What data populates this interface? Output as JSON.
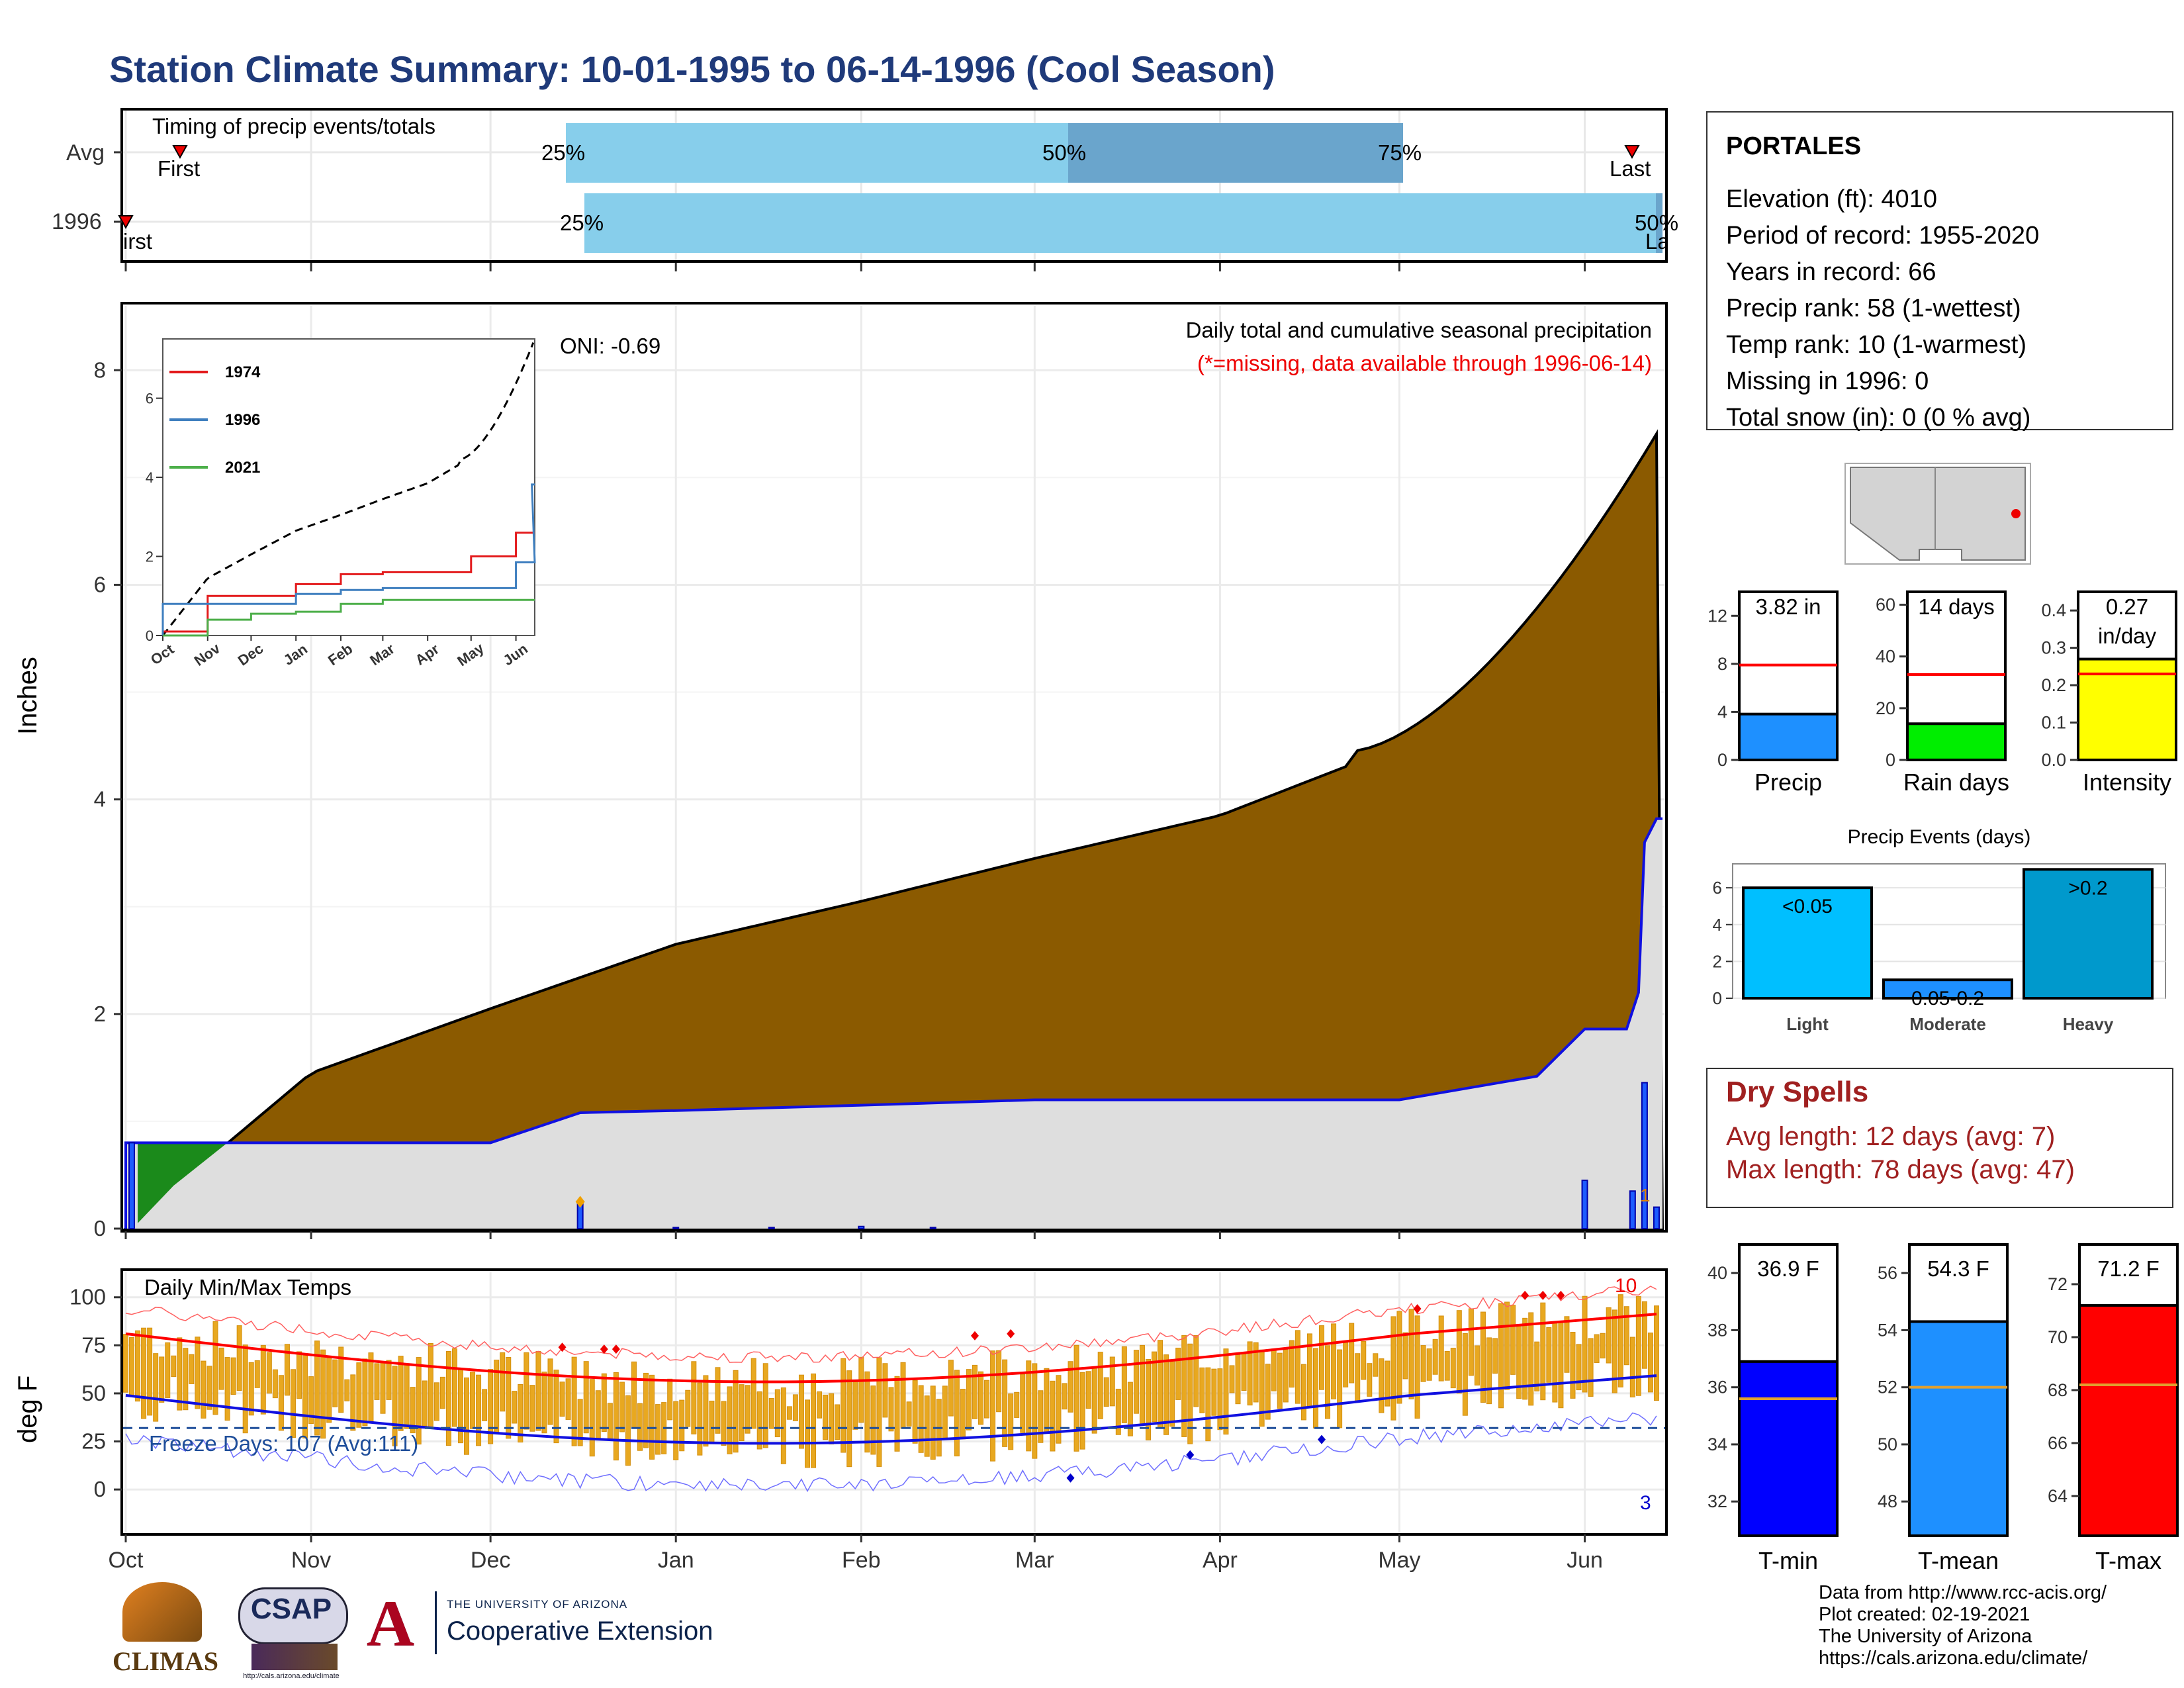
{
  "title": "Station Climate Summary: 10-01-1995 to 06-14-1996 (Cool Season)",
  "timing": {
    "label": "Timing of precip events/totals",
    "rows": [
      "Avg",
      "1996"
    ],
    "avg": {
      "first_label": "First",
      "last_label": "Last",
      "q25": "25%",
      "q50": "50%",
      "q75": "75%"
    },
    "y1996": {
      "first_label": "First",
      "last_label": "Last",
      "q25": "25%",
      "q50": "50%",
      "q75": "75%"
    }
  },
  "info": {
    "station": "PORTALES",
    "lines": [
      "Elevation (ft): 4010",
      "Period of record: 1955-2020",
      "Years in record: 66",
      "Precip rank: 58 (1-wettest)",
      "Temp rank: 10 (1-warmest)",
      "Missing in 1996: 0",
      "Total snow (in): 0 (0 % avg)"
    ]
  },
  "main_precip": {
    "ylabel": "Inches",
    "annotation1": "Daily total and cumulative seasonal precipitation",
    "annotation2": "(*=missing, data available through 1996-06-14)",
    "oni": "ONI: -0.69",
    "month_labels": [
      "Oct",
      "Nov",
      "Dec",
      "Jan",
      "Feb",
      "Mar",
      "Apr",
      "May",
      "Jun"
    ],
    "y_ticks": [
      "0",
      "2",
      "4",
      "6",
      "8"
    ],
    "small_label": "1"
  },
  "inset": {
    "legend": [
      "1974",
      "1996",
      "2021"
    ],
    "legend_colors": [
      "#e31a1c",
      "#3f7fbf",
      "#4daf4a"
    ],
    "x_labels": [
      "Oct",
      "Nov",
      "Dec",
      "Jan",
      "Feb",
      "Mar",
      "Apr",
      "May",
      "Jun"
    ],
    "y_ticks": [
      "0",
      "2",
      "4",
      "6"
    ]
  },
  "temps": {
    "label": "Daily Min/Max Temps",
    "ylabel": "deg F",
    "freeze": "Freeze Days: 107 (Avg:111)",
    "y_ticks": [
      "0",
      "25",
      "50",
      "75",
      "100"
    ],
    "month_labels": [
      "Oct",
      "Nov",
      "Dec",
      "Jan",
      "Feb",
      "Mar",
      "Apr",
      "May",
      "Jun"
    ],
    "count_high": "10",
    "count_low": "3"
  },
  "precip_bars": [
    {
      "value_label": "3.82 in",
      "name": "Precip",
      "ticks": [
        "0",
        "4",
        "8",
        "12"
      ],
      "color": "#1e90ff"
    },
    {
      "value_label": "14 days",
      "name": "Rain days",
      "ticks": [
        "0",
        "20",
        "40",
        "60"
      ],
      "color": "#00ee00"
    },
    {
      "value_label": "0.27\nin/day",
      "name": "Intensity",
      "ticks": [
        "0.0",
        "0.1",
        "0.2",
        "0.3",
        "0.4"
      ],
      "color": "#ffff00"
    }
  ],
  "precip_events": {
    "title": "Precip Events (days)",
    "categories": [
      "Light",
      "Moderate",
      "Heavy"
    ],
    "bar_labels": [
      "<0.05",
      "0.05-0.2",
      ">0.2"
    ],
    "ticks": [
      "0",
      "2",
      "4",
      "6"
    ]
  },
  "dry_spells": {
    "title": "Dry Spells",
    "avg": "Avg length: 12 days (avg: 7)",
    "max": "Max length: 78 days (avg: 47)"
  },
  "temp_bars": [
    {
      "value_label": "36.9 F",
      "name": "T-min",
      "ticks": [
        "32",
        "34",
        "36",
        "38",
        "40"
      ],
      "color": "#0000ff"
    },
    {
      "value_label": "54.3 F",
      "name": "T-mean",
      "ticks": [
        "48",
        "50",
        "52",
        "54",
        "56"
      ],
      "color": "#1e90ff"
    },
    {
      "value_label": "71.2 F",
      "name": "T-max",
      "ticks": [
        "64",
        "66",
        "68",
        "70",
        "72"
      ],
      "color": "#ff0000"
    }
  ],
  "logos": {
    "climas": "CLIMAS",
    "csap": "CSAP",
    "csap_url": "http://cals.arizona.edu/climate",
    "ua_small": "THE UNIVERSITY OF ARIZONA",
    "ua_big": "Cooperative Extension"
  },
  "footer": [
    "Data from http://www.rcc-acis.org/",
    "Plot created: 02-19-2021",
    "The University of Arizona",
    "https://cals.arizona.edu/climate/"
  ],
  "chart_data": [
    {
      "type": "area",
      "title": "Daily total and cumulative seasonal precipitation",
      "ylabel": "Inches",
      "ylim": [
        0,
        8
      ],
      "x": [
        "Oct",
        "Nov",
        "Dec",
        "Jan",
        "Feb",
        "Mar",
        "Apr",
        "May",
        "Jun"
      ],
      "series": [
        {
          "name": "1996",
          "values": [
            0.8,
            0.8,
            0.8,
            1.05,
            1.15,
            1.2,
            1.2,
            1.2,
            1.85
          ]
        }
      ],
      "avg_cumulative": [
        0.0,
        1.45,
        2.05,
        2.65,
        3.05,
        3.45,
        3.85,
        4.5,
        7.1
      ],
      "end_total": 3.82,
      "legend": "none"
    },
    {
      "type": "line",
      "title": "",
      "ylim": [
        0,
        7.5
      ],
      "x": [
        "Oct",
        "Nov",
        "Dec",
        "Jan",
        "Feb",
        "Mar",
        "Apr",
        "May",
        "Jun"
      ],
      "series": [
        {
          "name": "1974",
          "values": [
            0.1,
            1.0,
            1.0,
            1.3,
            1.55,
            1.6,
            1.6,
            2.0,
            2.6
          ]
        },
        {
          "name": "1996",
          "values": [
            0.8,
            0.8,
            0.8,
            1.05,
            1.15,
            1.2,
            1.2,
            1.2,
            1.85
          ]
        },
        {
          "name": "2021",
          "values": [
            0.0,
            0.4,
            0.55,
            0.6,
            0.8,
            0.9,
            0.9,
            0.9,
            0.9
          ]
        }
      ],
      "legend": "top-left"
    },
    {
      "type": "line",
      "title": "Daily Min/Max Temps",
      "ylabel": "deg F",
      "ylim": [
        -20,
        110
      ],
      "x": [
        "Oct",
        "Nov",
        "Dec",
        "Jan",
        "Feb",
        "Mar",
        "Apr",
        "May",
        "Jun"
      ],
      "series": [
        {
          "name": "avg max",
          "values": [
            81,
            71,
            59,
            56,
            58,
            63,
            71,
            80,
            90
          ]
        },
        {
          "name": "avg min",
          "values": [
            49,
            37,
            27,
            24,
            24,
            29,
            36,
            46,
            58
          ]
        }
      ],
      "freeze_line": 32
    },
    {
      "type": "bar",
      "categories": [
        "Precip",
        "Rain days",
        "Intensity"
      ],
      "values": [
        3.82,
        14,
        0.27
      ],
      "averages": [
        7.9,
        33,
        0.23
      ]
    },
    {
      "type": "bar",
      "title": "Precip Events (days)",
      "categories": [
        "Light",
        "Moderate",
        "Heavy"
      ],
      "values": [
        6,
        1,
        7
      ],
      "ylim": [
        0,
        7
      ]
    },
    {
      "type": "bar",
      "categories": [
        "T-min",
        "T-mean",
        "T-max"
      ],
      "values": [
        36.9,
        54.3,
        71.2
      ],
      "averages": [
        35.6,
        52.0,
        68.2
      ]
    }
  ]
}
